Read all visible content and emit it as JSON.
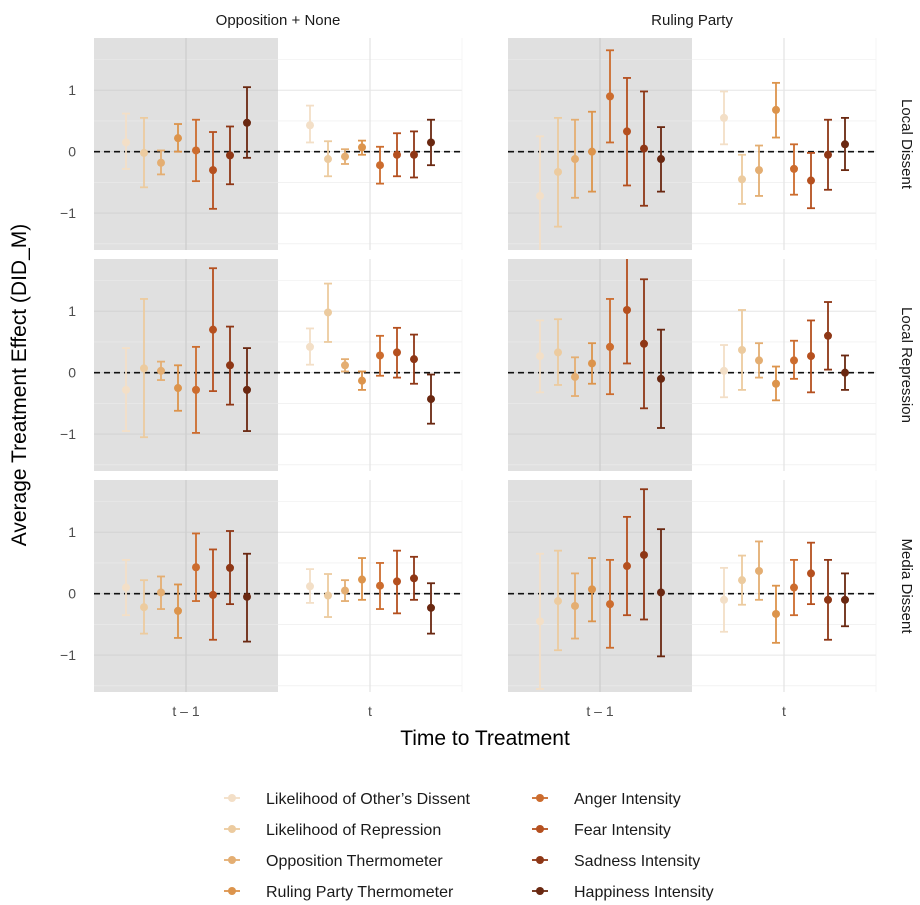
{
  "chart_data": {
    "type": "scatter",
    "subtype": "point-range faceted",
    "xlabel": "Time to Treatment",
    "ylabel": "Average Treatment Effect (DID_M)",
    "x_categories": [
      "t – 1",
      "t"
    ],
    "column_facets": [
      "Opposition + None",
      "Ruling Party"
    ],
    "row_facets": [
      "Local Dissent",
      "Local Repression",
      "Media Dissent"
    ],
    "y_ticks": [
      "1",
      "0",
      "−1"
    ],
    "ylim": [
      -1.6,
      1.85
    ],
    "reference_line": {
      "y": 0,
      "style": "dashed"
    },
    "shaded_category": "t – 1",
    "grid": true,
    "legend_position": "bottom",
    "series": [
      {
        "name": "Likelihood of Other’s Dissent",
        "color": "#f3dfc7"
      },
      {
        "name": "Likelihood of Repression",
        "color": "#eccb9f"
      },
      {
        "name": "Opposition Thermometer",
        "color": "#e4ae72"
      },
      {
        "name": "Ruling Party Thermometer",
        "color": "#dc944c"
      },
      {
        "name": "Anger Intensity",
        "color": "#cc6c2e"
      },
      {
        "name": "Fear Intensity",
        "color": "#b5501f"
      },
      {
        "name": "Sadness Intensity",
        "color": "#8e3716"
      },
      {
        "name": "Happiness Intensity",
        "color": "#6a2811"
      }
    ],
    "panels": [
      {
        "col": 0,
        "row": 0,
        "points": [
          {
            "t – 1": [
              0.15,
              -0.28,
              0.62
            ],
            "t": [
              0.43,
              0.15,
              0.75
            ]
          },
          {
            "t – 1": [
              -0.02,
              -0.58,
              0.55
            ],
            "t": [
              -0.12,
              -0.4,
              0.17
            ]
          },
          {
            "t – 1": [
              -0.18,
              -0.37,
              0.02
            ],
            "t": [
              -0.08,
              -0.2,
              0.04
            ]
          },
          {
            "t – 1": [
              0.22,
              0.0,
              0.45
            ],
            "t": [
              0.07,
              -0.05,
              0.18
            ]
          },
          {
            "t – 1": [
              0.02,
              -0.48,
              0.52
            ],
            "t": [
              -0.22,
              -0.52,
              0.08
            ]
          },
          {
            "t – 1": [
              -0.3,
              -0.93,
              0.32
            ],
            "t": [
              -0.05,
              -0.4,
              0.3
            ]
          },
          {
            "t – 1": [
              -0.06,
              -0.53,
              0.41
            ],
            "t": [
              -0.05,
              -0.42,
              0.33
            ]
          },
          {
            "t – 1": [
              0.47,
              -0.1,
              1.05
            ],
            "t": [
              0.15,
              -0.22,
              0.52
            ]
          }
        ]
      },
      {
        "col": 1,
        "row": 0,
        "points": [
          {
            "t – 1": [
              -0.72,
              -1.68,
              0.25
            ],
            "t": [
              0.55,
              0.12,
              0.98
            ]
          },
          {
            "t – 1": [
              -0.33,
              -1.22,
              0.55
            ],
            "t": [
              -0.45,
              -0.85,
              -0.05
            ]
          },
          {
            "t – 1": [
              -0.12,
              -0.75,
              0.52
            ],
            "t": [
              -0.3,
              -0.72,
              0.1
            ]
          },
          {
            "t – 1": [
              0.0,
              -0.65,
              0.65
            ],
            "t": [
              0.68,
              0.23,
              1.12
            ]
          },
          {
            "t – 1": [
              0.9,
              0.15,
              1.65
            ],
            "t": [
              -0.28,
              -0.7,
              0.12
            ]
          },
          {
            "t – 1": [
              0.33,
              -0.55,
              1.2
            ],
            "t": [
              -0.47,
              -0.92,
              -0.02
            ]
          },
          {
            "t – 1": [
              0.05,
              -0.88,
              0.98
            ],
            "t": [
              -0.05,
              -0.62,
              0.52
            ]
          },
          {
            "t – 1": [
              -0.12,
              -0.65,
              0.4
            ],
            "t": [
              0.12,
              -0.3,
              0.55
            ]
          }
        ]
      },
      {
        "col": 0,
        "row": 1,
        "points": [
          {
            "t – 1": [
              -0.28,
              -0.95,
              0.4
            ],
            "t": [
              0.42,
              0.13,
              0.72
            ]
          },
          {
            "t – 1": [
              0.07,
              -1.05,
              1.2
            ],
            "t": [
              0.98,
              0.5,
              1.45
            ]
          },
          {
            "t – 1": [
              0.03,
              -0.12,
              0.18
            ],
            "t": [
              0.12,
              0.02,
              0.22
            ]
          },
          {
            "t – 1": [
              -0.25,
              -0.62,
              0.12
            ],
            "t": [
              -0.13,
              -0.28,
              0.02
            ]
          },
          {
            "t – 1": [
              -0.28,
              -0.98,
              0.42
            ],
            "t": [
              0.28,
              -0.05,
              0.6
            ]
          },
          {
            "t – 1": [
              0.7,
              -0.3,
              1.7
            ],
            "t": [
              0.33,
              -0.08,
              0.73
            ]
          },
          {
            "t – 1": [
              0.12,
              -0.52,
              0.75
            ],
            "t": [
              0.22,
              -0.18,
              0.62
            ]
          },
          {
            "t – 1": [
              -0.28,
              -0.95,
              0.4
            ],
            "t": [
              -0.43,
              -0.83,
              -0.03
            ]
          }
        ]
      },
      {
        "col": 1,
        "row": 1,
        "points": [
          {
            "t – 1": [
              0.27,
              -0.32,
              0.85
            ],
            "t": [
              0.03,
              -0.4,
              0.45
            ]
          },
          {
            "t – 1": [
              0.33,
              -0.2,
              0.87
            ],
            "t": [
              0.37,
              -0.28,
              1.02
            ]
          },
          {
            "t – 1": [
              -0.07,
              -0.38,
              0.25
            ],
            "t": [
              0.2,
              -0.08,
              0.48
            ]
          },
          {
            "t – 1": [
              0.15,
              -0.18,
              0.48
            ],
            "t": [
              -0.18,
              -0.45,
              0.1
            ]
          },
          {
            "t – 1": [
              0.42,
              -0.35,
              1.2
            ],
            "t": [
              0.2,
              -0.1,
              0.52
            ]
          },
          {
            "t – 1": [
              1.02,
              0.15,
              1.88
            ],
            "t": [
              0.27,
              -0.32,
              0.85
            ]
          },
          {
            "t – 1": [
              0.47,
              -0.58,
              1.52
            ],
            "t": [
              0.6,
              0.05,
              1.15
            ]
          },
          {
            "t – 1": [
              -0.1,
              -0.9,
              0.7
            ],
            "t": [
              0.0,
              -0.28,
              0.28
            ]
          }
        ]
      },
      {
        "col": 0,
        "row": 2,
        "points": [
          {
            "t – 1": [
              0.1,
              -0.35,
              0.55
            ],
            "t": [
              0.12,
              -0.15,
              0.4
            ]
          },
          {
            "t – 1": [
              -0.22,
              -0.65,
              0.22
            ],
            "t": [
              -0.03,
              -0.38,
              0.32
            ]
          },
          {
            "t – 1": [
              0.02,
              -0.25,
              0.28
            ],
            "t": [
              0.05,
              -0.12,
              0.22
            ]
          },
          {
            "t – 1": [
              -0.28,
              -0.72,
              0.15
            ],
            "t": [
              0.23,
              -0.1,
              0.58
            ]
          },
          {
            "t – 1": [
              0.43,
              -0.12,
              0.98
            ],
            "t": [
              0.13,
              -0.25,
              0.5
            ]
          },
          {
            "t – 1": [
              -0.02,
              -0.75,
              0.72
            ],
            "t": [
              0.2,
              -0.32,
              0.7
            ]
          },
          {
            "t – 1": [
              0.42,
              -0.17,
              1.02
            ],
            "t": [
              0.25,
              -0.1,
              0.6
            ]
          },
          {
            "t – 1": [
              -0.05,
              -0.78,
              0.65
            ],
            "t": [
              -0.23,
              -0.65,
              0.17
            ]
          }
        ]
      },
      {
        "col": 1,
        "row": 2,
        "points": [
          {
            "t – 1": [
              -0.45,
              -1.55,
              0.65
            ],
            "t": [
              -0.1,
              -0.62,
              0.42
            ]
          },
          {
            "t – 1": [
              -0.12,
              -0.92,
              0.7
            ],
            "t": [
              0.22,
              -0.18,
              0.62
            ]
          },
          {
            "t – 1": [
              -0.2,
              -0.73,
              0.33
            ],
            "t": [
              0.37,
              -0.1,
              0.85
            ]
          },
          {
            "t – 1": [
              0.07,
              -0.45,
              0.58
            ],
            "t": [
              -0.33,
              -0.8,
              0.13
            ]
          },
          {
            "t – 1": [
              -0.17,
              -0.88,
              0.55
            ],
            "t": [
              0.1,
              -0.35,
              0.55
            ]
          },
          {
            "t – 1": [
              0.45,
              -0.35,
              1.25
            ],
            "t": [
              0.33,
              -0.17,
              0.83
            ]
          },
          {
            "t – 1": [
              0.63,
              -0.42,
              1.7
            ],
            "t": [
              -0.1,
              -0.75,
              0.55
            ]
          },
          {
            "t – 1": [
              0.02,
              -1.02,
              1.05
            ],
            "t": [
              -0.1,
              -0.53,
              0.33
            ]
          }
        ]
      }
    ]
  }
}
